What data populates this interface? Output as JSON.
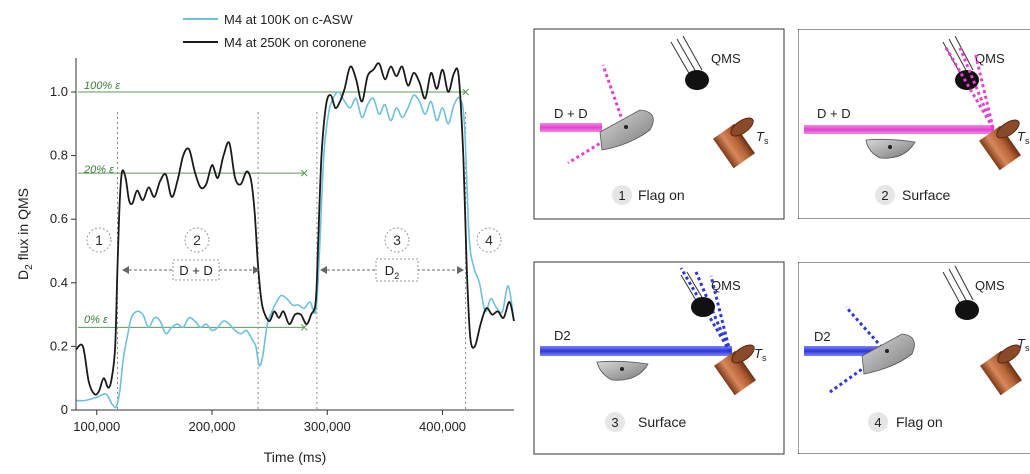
{
  "legend": {
    "blue_label": "M4 at 100K on c-ASW",
    "black_label": "M4 at 250K on coronene"
  },
  "colors": {
    "blue": "#6ec1d9",
    "black": "#1a1a1a",
    "green": "#5a9a5a",
    "magenta": "#e63fd1",
    "deep_blue": "#2a36e0",
    "panel_border": "#444444",
    "cylinder": "#b86a3c"
  },
  "annotations": {
    "eps100": "100% ε",
    "eps20": "20% ε",
    "eps0": "0% ε",
    "phase1": "1",
    "phase2": "2",
    "phase3": "3",
    "phase4": "4",
    "dd": "D + D",
    "d2_base": "D",
    "d2_sub": "2"
  },
  "panels": [
    {
      "num": "1",
      "label": "Flag on",
      "beam": "D + D",
      "qms": "QMS",
      "ts": "T",
      "ts_sub": "s"
    },
    {
      "num": "2",
      "label": "Surface",
      "beam": "D + D",
      "qms": "QMS",
      "ts": "T",
      "ts_sub": "s"
    },
    {
      "num": "3",
      "label": "Surface",
      "beam": "D2",
      "qms": "QMS",
      "ts": "T",
      "ts_sub": "s"
    },
    {
      "num": "4",
      "label": "Flag on",
      "beam": "D2",
      "qms": "QMS",
      "ts": "T",
      "ts_sub": "s"
    }
  ],
  "chart_data": {
    "type": "line",
    "xlabel": "Time (ms)",
    "ylabel_base": "D",
    "ylabel_sub": "2",
    "ylabel_rest": " flux in QMS",
    "xlim": [
      82000,
      462000
    ],
    "ylim": [
      0,
      1.1
    ],
    "xticks": [
      100000,
      200000,
      300000,
      400000
    ],
    "xtick_labels": [
      "100,000",
      "200,000",
      "300,000",
      "400,000"
    ],
    "yticks": [
      0,
      0.2,
      0.4,
      0.6,
      0.8,
      1.0
    ],
    "ytick_labels": [
      "0",
      "0.2",
      "0.4",
      "0.6",
      "0.8",
      "1.0"
    ],
    "phase_boundaries": [
      118000,
      240000,
      291000,
      420000
    ],
    "epsilon_levels": [
      {
        "label": "100% ε",
        "y": 1.0,
        "x0": 82000,
        "x1": 420000
      },
      {
        "label": "20% ε",
        "y": 0.745,
        "x0": 82000,
        "x1": 280000
      },
      {
        "label": "0% ε",
        "y": 0.26,
        "x0": 82000,
        "x1": 280000
      }
    ],
    "series": [
      {
        "name": "M4 at 100K on c-ASW",
        "x": [
          82000,
          90000,
          100000,
          108000,
          113000,
          117000,
          120000,
          123000,
          127000,
          130000,
          135000,
          140000,
          145000,
          150000,
          155000,
          160000,
          165000,
          170000,
          175000,
          180000,
          185000,
          190000,
          195000,
          200000,
          205000,
          210000,
          215000,
          220000,
          225000,
          230000,
          235000,
          238000,
          241000,
          244000,
          248000,
          252000,
          256000,
          260000,
          265000,
          270000,
          275000,
          280000,
          285000,
          290000,
          293000,
          297000,
          301000,
          305000,
          310000,
          315000,
          320000,
          325000,
          330000,
          335000,
          340000,
          345000,
          350000,
          355000,
          360000,
          365000,
          370000,
          375000,
          380000,
          385000,
          390000,
          395000,
          400000,
          405000,
          410000,
          415000,
          419000,
          423000,
          427000,
          432000,
          437000,
          442000,
          447000,
          452000,
          457000,
          462000
        ],
        "y": [
          0.03,
          0.03,
          0.04,
          0.05,
          0.02,
          0.01,
          0.06,
          0.16,
          0.24,
          0.29,
          0.31,
          0.3,
          0.26,
          0.29,
          0.28,
          0.24,
          0.26,
          0.27,
          0.26,
          0.29,
          0.28,
          0.26,
          0.27,
          0.25,
          0.26,
          0.28,
          0.27,
          0.25,
          0.24,
          0.25,
          0.22,
          0.2,
          0.14,
          0.17,
          0.27,
          0.31,
          0.34,
          0.36,
          0.35,
          0.33,
          0.33,
          0.32,
          0.34,
          0.31,
          0.48,
          0.8,
          0.93,
          0.98,
          1.0,
          0.97,
          0.95,
          0.98,
          0.92,
          0.96,
          0.98,
          0.93,
          0.96,
          0.91,
          0.95,
          0.92,
          0.95,
          0.99,
          0.97,
          0.93,
          0.97,
          0.91,
          0.95,
          0.9,
          0.96,
          0.98,
          0.9,
          0.55,
          0.45,
          0.4,
          0.31,
          0.35,
          0.32,
          0.31,
          0.39,
          0.28
        ]
      },
      {
        "name": "M4 at 250K on coronene",
        "x": [
          82000,
          88000,
          93000,
          98000,
          102000,
          106000,
          110000,
          113000,
          116000,
          118000,
          120000,
          122000,
          125000,
          128000,
          131000,
          135000,
          140000,
          145000,
          150000,
          155000,
          160000,
          165000,
          170000,
          175000,
          180000,
          185000,
          190000,
          195000,
          200000,
          205000,
          210000,
          215000,
          220000,
          225000,
          230000,
          234000,
          237000,
          240000,
          243000,
          246000,
          250000,
          254000,
          258000,
          262000,
          267000,
          272000,
          277000,
          282000,
          286000,
          290000,
          292000,
          295000,
          299000,
          303000,
          307000,
          311000,
          315000,
          320000,
          325000,
          330000,
          335000,
          340000,
          345000,
          350000,
          355000,
          360000,
          365000,
          370000,
          375000,
          380000,
          385000,
          390000,
          395000,
          400000,
          405000,
          410000,
          414000,
          418000,
          421000,
          424000,
          428000,
          433000,
          438000,
          443000,
          448000,
          453000,
          458000,
          462000
        ],
        "y": [
          0.19,
          0.2,
          0.09,
          0.05,
          0.06,
          0.1,
          0.07,
          0.1,
          0.2,
          0.45,
          0.66,
          0.75,
          0.73,
          0.66,
          0.65,
          0.69,
          0.66,
          0.7,
          0.67,
          0.72,
          0.74,
          0.67,
          0.72,
          0.8,
          0.82,
          0.75,
          0.7,
          0.71,
          0.77,
          0.73,
          0.8,
          0.84,
          0.73,
          0.71,
          0.75,
          0.72,
          0.62,
          0.45,
          0.34,
          0.3,
          0.28,
          0.31,
          0.29,
          0.31,
          0.27,
          0.3,
          0.3,
          0.27,
          0.3,
          0.34,
          0.52,
          0.8,
          0.96,
          0.99,
          0.95,
          0.97,
          1.01,
          1.08,
          1.04,
          0.97,
          1.05,
          1.07,
          1.09,
          1.04,
          1.08,
          1.05,
          1.08,
          1.02,
          1.06,
          1.03,
          0.98,
          1.06,
          1.01,
          1.07,
          1.0,
          1.06,
          1.05,
          0.8,
          0.45,
          0.23,
          0.2,
          0.27,
          0.32,
          0.3,
          0.31,
          0.29,
          0.34,
          0.28
        ]
      }
    ]
  }
}
